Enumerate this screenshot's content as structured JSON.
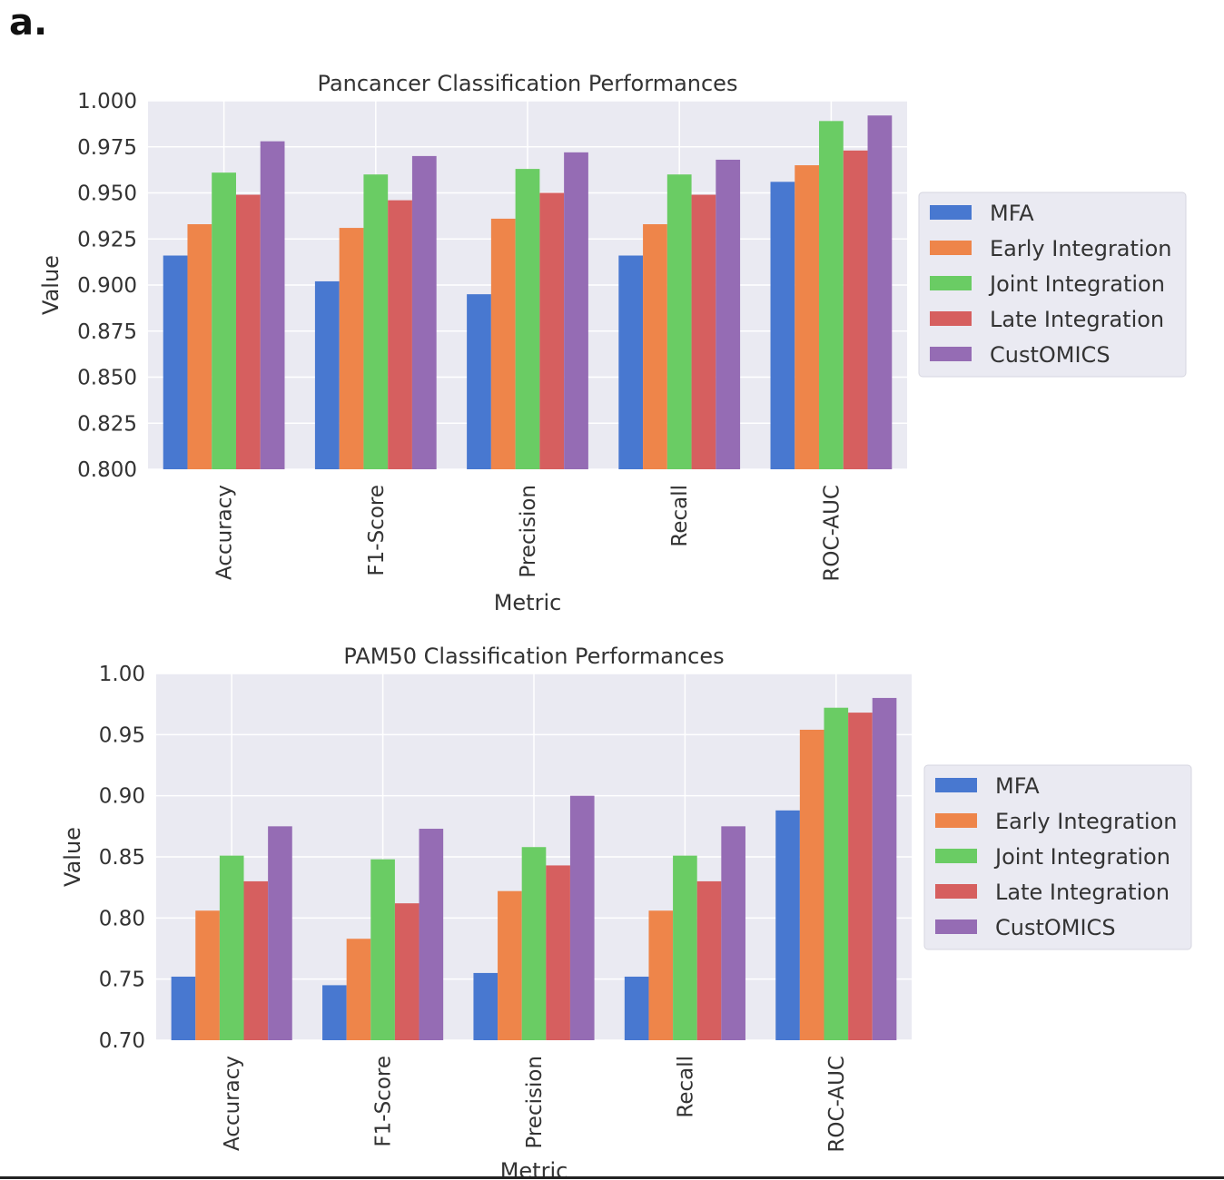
{
  "panel_label": "a.",
  "colors": {
    "plot_background": "#eaeaf2",
    "grid": "#ffffff",
    "text": "#333333"
  },
  "chart_data": [
    {
      "type": "bar",
      "title": "Pancancer Classification Performances",
      "xlabel": "Metric",
      "ylabel": "Value",
      "categories": [
        "Accuracy",
        "F1-Score",
        "Precision",
        "Recall",
        "ROC-AUC"
      ],
      "ylim": [
        0.8,
        1.0
      ],
      "yticks": [
        "0.800",
        "0.825",
        "0.850",
        "0.875",
        "0.900",
        "0.925",
        "0.950",
        "0.975",
        "1.000"
      ],
      "grid": true,
      "legend_position": "right",
      "series": [
        {
          "name": "MFA",
          "color": "#4878d0",
          "values": [
            0.916,
            0.902,
            0.895,
            0.916,
            0.956
          ]
        },
        {
          "name": "Early Integration",
          "color": "#ee854a",
          "values": [
            0.933,
            0.931,
            0.936,
            0.933,
            0.965
          ]
        },
        {
          "name": "Joint Integration",
          "color": "#6acc64",
          "values": [
            0.961,
            0.96,
            0.963,
            0.96,
            0.989
          ]
        },
        {
          "name": "Late Integration",
          "color": "#d65f5f",
          "values": [
            0.949,
            0.946,
            0.95,
            0.949,
            0.973
          ]
        },
        {
          "name": "CustOMICS",
          "color": "#956cb4",
          "values": [
            0.978,
            0.97,
            0.972,
            0.968,
            0.992
          ]
        }
      ]
    },
    {
      "type": "bar",
      "title": "PAM50 Classification Performances",
      "xlabel": "Metric",
      "ylabel": "Value",
      "categories": [
        "Accuracy",
        "F1-Score",
        "Precision",
        "Recall",
        "ROC-AUC"
      ],
      "ylim": [
        0.7,
        1.0
      ],
      "yticks": [
        "0.70",
        "0.75",
        "0.80",
        "0.85",
        "0.90",
        "0.95",
        "1.00"
      ],
      "grid": true,
      "legend_position": "right",
      "series": [
        {
          "name": "MFA",
          "color": "#4878d0",
          "values": [
            0.752,
            0.745,
            0.755,
            0.752,
            0.888
          ]
        },
        {
          "name": "Early Integration",
          "color": "#ee854a",
          "values": [
            0.806,
            0.783,
            0.822,
            0.806,
            0.954
          ]
        },
        {
          "name": "Joint Integration",
          "color": "#6acc64",
          "values": [
            0.851,
            0.848,
            0.858,
            0.851,
            0.972
          ]
        },
        {
          "name": "Late Integration",
          "color": "#d65f5f",
          "values": [
            0.83,
            0.812,
            0.843,
            0.83,
            0.968
          ]
        },
        {
          "name": "CustOMICS",
          "color": "#956cb4",
          "values": [
            0.875,
            0.873,
            0.9,
            0.875,
            0.98
          ]
        }
      ]
    }
  ]
}
